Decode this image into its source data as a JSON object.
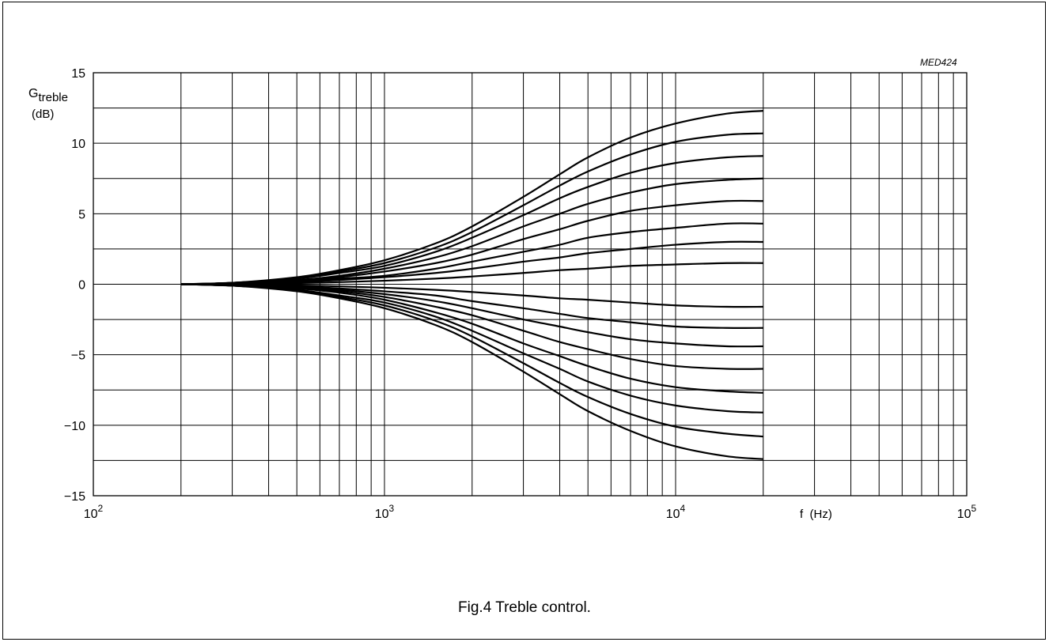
{
  "figure_code": "MED424",
  "caption": "Fig.4  Treble control.",
  "chart_data": {
    "type": "line",
    "title": "",
    "ylabel_main": "G",
    "ylabel_sub": "treble",
    "ylabel_unit": "(dB)",
    "xlabel": "f  (Hz)",
    "xscale": "log",
    "xlim": [
      100,
      100000
    ],
    "ylim": [
      -15,
      15
    ],
    "yticks": [
      15,
      10,
      5,
      0,
      -5,
      -10,
      -15
    ],
    "ytick_labels": [
      "15",
      "10",
      "5",
      "0",
      "−5",
      "−10",
      "−15"
    ],
    "xticks": [
      {
        "value": 100,
        "base": "10",
        "exp": "2"
      },
      {
        "value": 1000,
        "base": "10",
        "exp": "3"
      },
      {
        "value": 10000,
        "base": "10",
        "exp": "4"
      },
      {
        "value": 100000,
        "base": "10",
        "exp": "5"
      }
    ],
    "grid": true,
    "x": [
      200,
      300,
      500,
      700,
      1000,
      1500,
      2000,
      3000,
      4000,
      5000,
      7000,
      10000,
      15000,
      20000
    ],
    "series": [
      {
        "values": [
          0,
          0.1,
          0.5,
          1.0,
          1.7,
          2.9,
          4.1,
          6.2,
          7.8,
          9.0,
          10.4,
          11.4,
          12.1,
          12.3
        ]
      },
      {
        "values": [
          0,
          0.1,
          0.4,
          0.9,
          1.5,
          2.6,
          3.7,
          5.6,
          7.0,
          8.0,
          9.2,
          10.1,
          10.6,
          10.7
        ]
      },
      {
        "values": [
          0,
          0.1,
          0.4,
          0.8,
          1.3,
          2.3,
          3.3,
          4.9,
          6.1,
          6.9,
          7.9,
          8.6,
          9.0,
          9.1
        ]
      },
      {
        "values": [
          0,
          0.1,
          0.3,
          0.6,
          1.1,
          1.9,
          2.7,
          4.1,
          5.0,
          5.7,
          6.5,
          7.1,
          7.4,
          7.5
        ]
      },
      {
        "values": [
          0,
          0.05,
          0.25,
          0.5,
          0.9,
          1.5,
          2.1,
          3.2,
          3.9,
          4.5,
          5.2,
          5.6,
          5.9,
          5.9
        ]
      },
      {
        "values": [
          0,
          0.05,
          0.2,
          0.4,
          0.6,
          1.1,
          1.6,
          2.3,
          2.8,
          3.3,
          3.7,
          4.0,
          4.3,
          4.3
        ]
      },
      {
        "values": [
          0,
          0.03,
          0.15,
          0.3,
          0.5,
          0.8,
          1.1,
          1.6,
          1.9,
          2.2,
          2.5,
          2.8,
          3.0,
          3.0
        ]
      },
      {
        "values": [
          0,
          0.02,
          0.08,
          0.15,
          0.25,
          0.4,
          0.55,
          0.8,
          1.0,
          1.1,
          1.3,
          1.4,
          1.5,
          1.5
        ]
      },
      {
        "values": [
          0,
          -0.02,
          -0.08,
          -0.15,
          -0.25,
          -0.4,
          -0.55,
          -0.8,
          -1.0,
          -1.1,
          -1.3,
          -1.5,
          -1.6,
          -1.6
        ]
      },
      {
        "values": [
          0,
          -0.03,
          -0.15,
          -0.3,
          -0.5,
          -0.8,
          -1.2,
          -1.7,
          -2.1,
          -2.4,
          -2.7,
          -3.0,
          -3.1,
          -3.1
        ]
      },
      {
        "values": [
          0,
          -0.05,
          -0.2,
          -0.4,
          -0.7,
          -1.2,
          -1.7,
          -2.5,
          -3.0,
          -3.4,
          -3.9,
          -4.2,
          -4.4,
          -4.4
        ]
      },
      {
        "values": [
          0,
          -0.05,
          -0.3,
          -0.5,
          -0.9,
          -1.6,
          -2.2,
          -3.3,
          -4.1,
          -4.6,
          -5.3,
          -5.8,
          -6.0,
          -6.0
        ]
      },
      {
        "values": [
          0,
          -0.1,
          -0.3,
          -0.6,
          -1.1,
          -2.0,
          -2.8,
          -4.2,
          -5.1,
          -5.8,
          -6.7,
          -7.3,
          -7.6,
          -7.7
        ]
      },
      {
        "values": [
          0,
          -0.1,
          -0.4,
          -0.8,
          -1.3,
          -2.3,
          -3.3,
          -4.9,
          -6.0,
          -6.9,
          -7.9,
          -8.6,
          -9.0,
          -9.1
        ]
      },
      {
        "values": [
          0,
          -0.1,
          -0.4,
          -0.9,
          -1.5,
          -2.6,
          -3.7,
          -5.6,
          -7.0,
          -8.0,
          -9.2,
          -10.1,
          -10.6,
          -10.8
        ]
      },
      {
        "values": [
          0,
          -0.1,
          -0.5,
          -1.0,
          -1.7,
          -2.9,
          -4.1,
          -6.2,
          -7.8,
          -9.0,
          -10.4,
          -11.5,
          -12.2,
          -12.4
        ]
      }
    ]
  }
}
